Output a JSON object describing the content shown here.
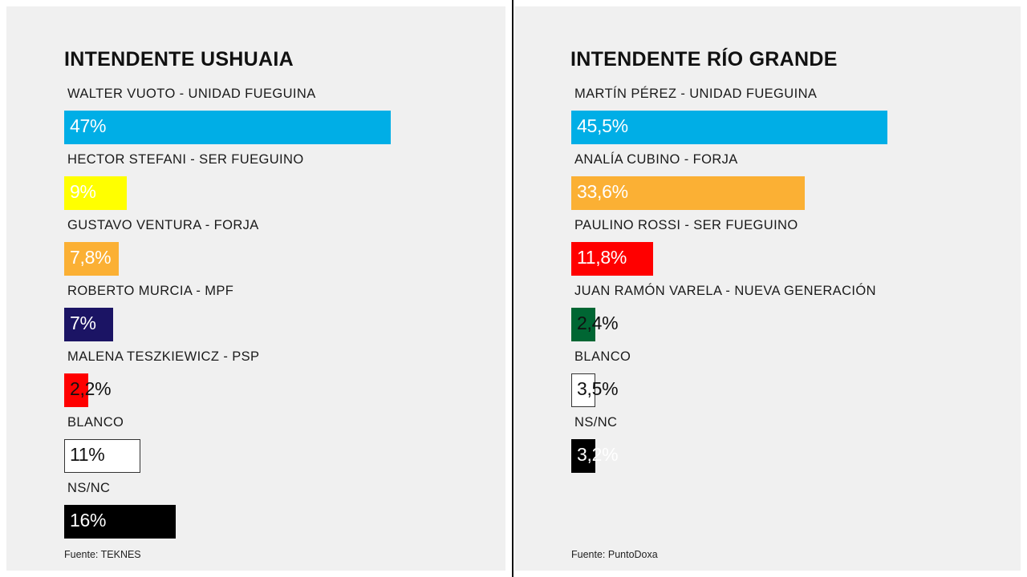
{
  "chart_data": [
    {
      "type": "bar",
      "title": "INTENDENTE USHUAIA",
      "categories": [
        "WALTER VUOTO - UNIDAD FUEGUINA",
        "HECTOR STEFANI - SER FUEGUINO",
        "GUSTAVO VENTURA - FORJA",
        "ROBERTO MURCIA - MPF",
        "MALENA TESZKIEWICZ - PSP",
        "BLANCO",
        "NS/NC"
      ],
      "values": [
        47,
        9,
        7.8,
        7,
        2.2,
        11,
        16
      ],
      "value_labels": [
        "47%",
        "9%",
        "7,8%",
        "7%",
        "2,2%",
        "11%",
        "16%"
      ],
      "colors": [
        "#00aee6",
        "#ffff00",
        "#fbb034",
        "#1b1464",
        "#ff0000",
        "#ffffff",
        "#000000"
      ],
      "label_colors": [
        "#ffffff",
        "#ffffff",
        "#ffffff",
        "#ffffff",
        "#111111",
        "#111111",
        "#ffffff"
      ],
      "source": "Fuente: TEKNES",
      "xlim": [
        0,
        100
      ],
      "grid": false
    },
    {
      "type": "bar",
      "title": "INTENDENTE RÍO GRANDE",
      "categories": [
        "MARTÍN PÉREZ - UNIDAD FUEGUINA",
        "ANALÍA CUBINO - FORJA",
        "PAULINO ROSSI - SER FUEGUINO",
        "JUAN RAMÓN VARELA - NUEVA GENERACIÓN",
        "BLANCO",
        "NS/NC"
      ],
      "values": [
        45.5,
        33.6,
        11.8,
        2.4,
        3.5,
        3.2
      ],
      "value_labels": [
        "45,5%",
        "33,6%",
        "11,8%",
        "2,4%",
        "3,5%",
        "3,2%"
      ],
      "colors": [
        "#00aee6",
        "#fbb034",
        "#ff0000",
        "#006633",
        "#ffffff",
        "#000000"
      ],
      "label_colors": [
        "#ffffff",
        "#ffffff",
        "#ffffff",
        "#111111",
        "#111111",
        "#ffffff"
      ],
      "source": "Fuente: PuntoDoxa",
      "xlim": [
        0,
        100
      ],
      "grid": false
    }
  ]
}
